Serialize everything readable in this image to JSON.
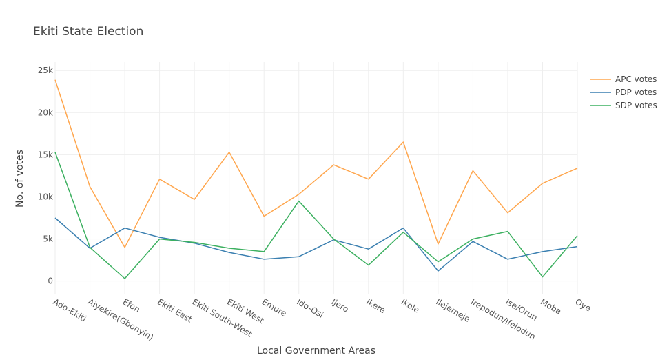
{
  "chart_data": {
    "type": "line",
    "title": "Ekiti State Election",
    "xlabel": "Local Government Areas",
    "ylabel": "No. of votes",
    "ylim": [
      -1500,
      26000
    ],
    "yticks": [
      0,
      5000,
      10000,
      15000,
      20000,
      25000
    ],
    "ytick_labels": [
      "0",
      "5k",
      "10k",
      "15k",
      "20k",
      "25k"
    ],
    "grid": true,
    "legend_position": "top-right",
    "categories": [
      "Ado-Ekiti",
      "Aiyekire(Gbonyin)",
      "Efon",
      "Ekiti East",
      "Ekiti South-West",
      "Ekiti West",
      "Emure",
      "Ido-Osi",
      "Ijero",
      "Ikere",
      "Ikole",
      "Ilejemeje",
      "Irepodun/Ifelodun",
      "Ise/Orun",
      "Moba",
      "Oye"
    ],
    "series": [
      {
        "name": "APC votes",
        "color": "#ffa64d",
        "values": [
          23900,
          11200,
          4000,
          12100,
          9700,
          15300,
          7700,
          10300,
          13800,
          12100,
          16500,
          4400,
          13100,
          8100,
          11600,
          13400
        ]
      },
      {
        "name": "PDP votes",
        "color": "#3a7fb0",
        "values": [
          7500,
          3900,
          6300,
          5200,
          4500,
          3400,
          2600,
          2900,
          4900,
          3800,
          6300,
          1200,
          4700,
          2600,
          3500,
          4100
        ]
      },
      {
        "name": "SDP votes",
        "color": "#3cb060",
        "values": [
          15300,
          4000,
          300,
          5000,
          4600,
          3900,
          3500,
          9500,
          5000,
          1900,
          5800,
          2300,
          5000,
          5900,
          500,
          5400
        ]
      }
    ]
  }
}
